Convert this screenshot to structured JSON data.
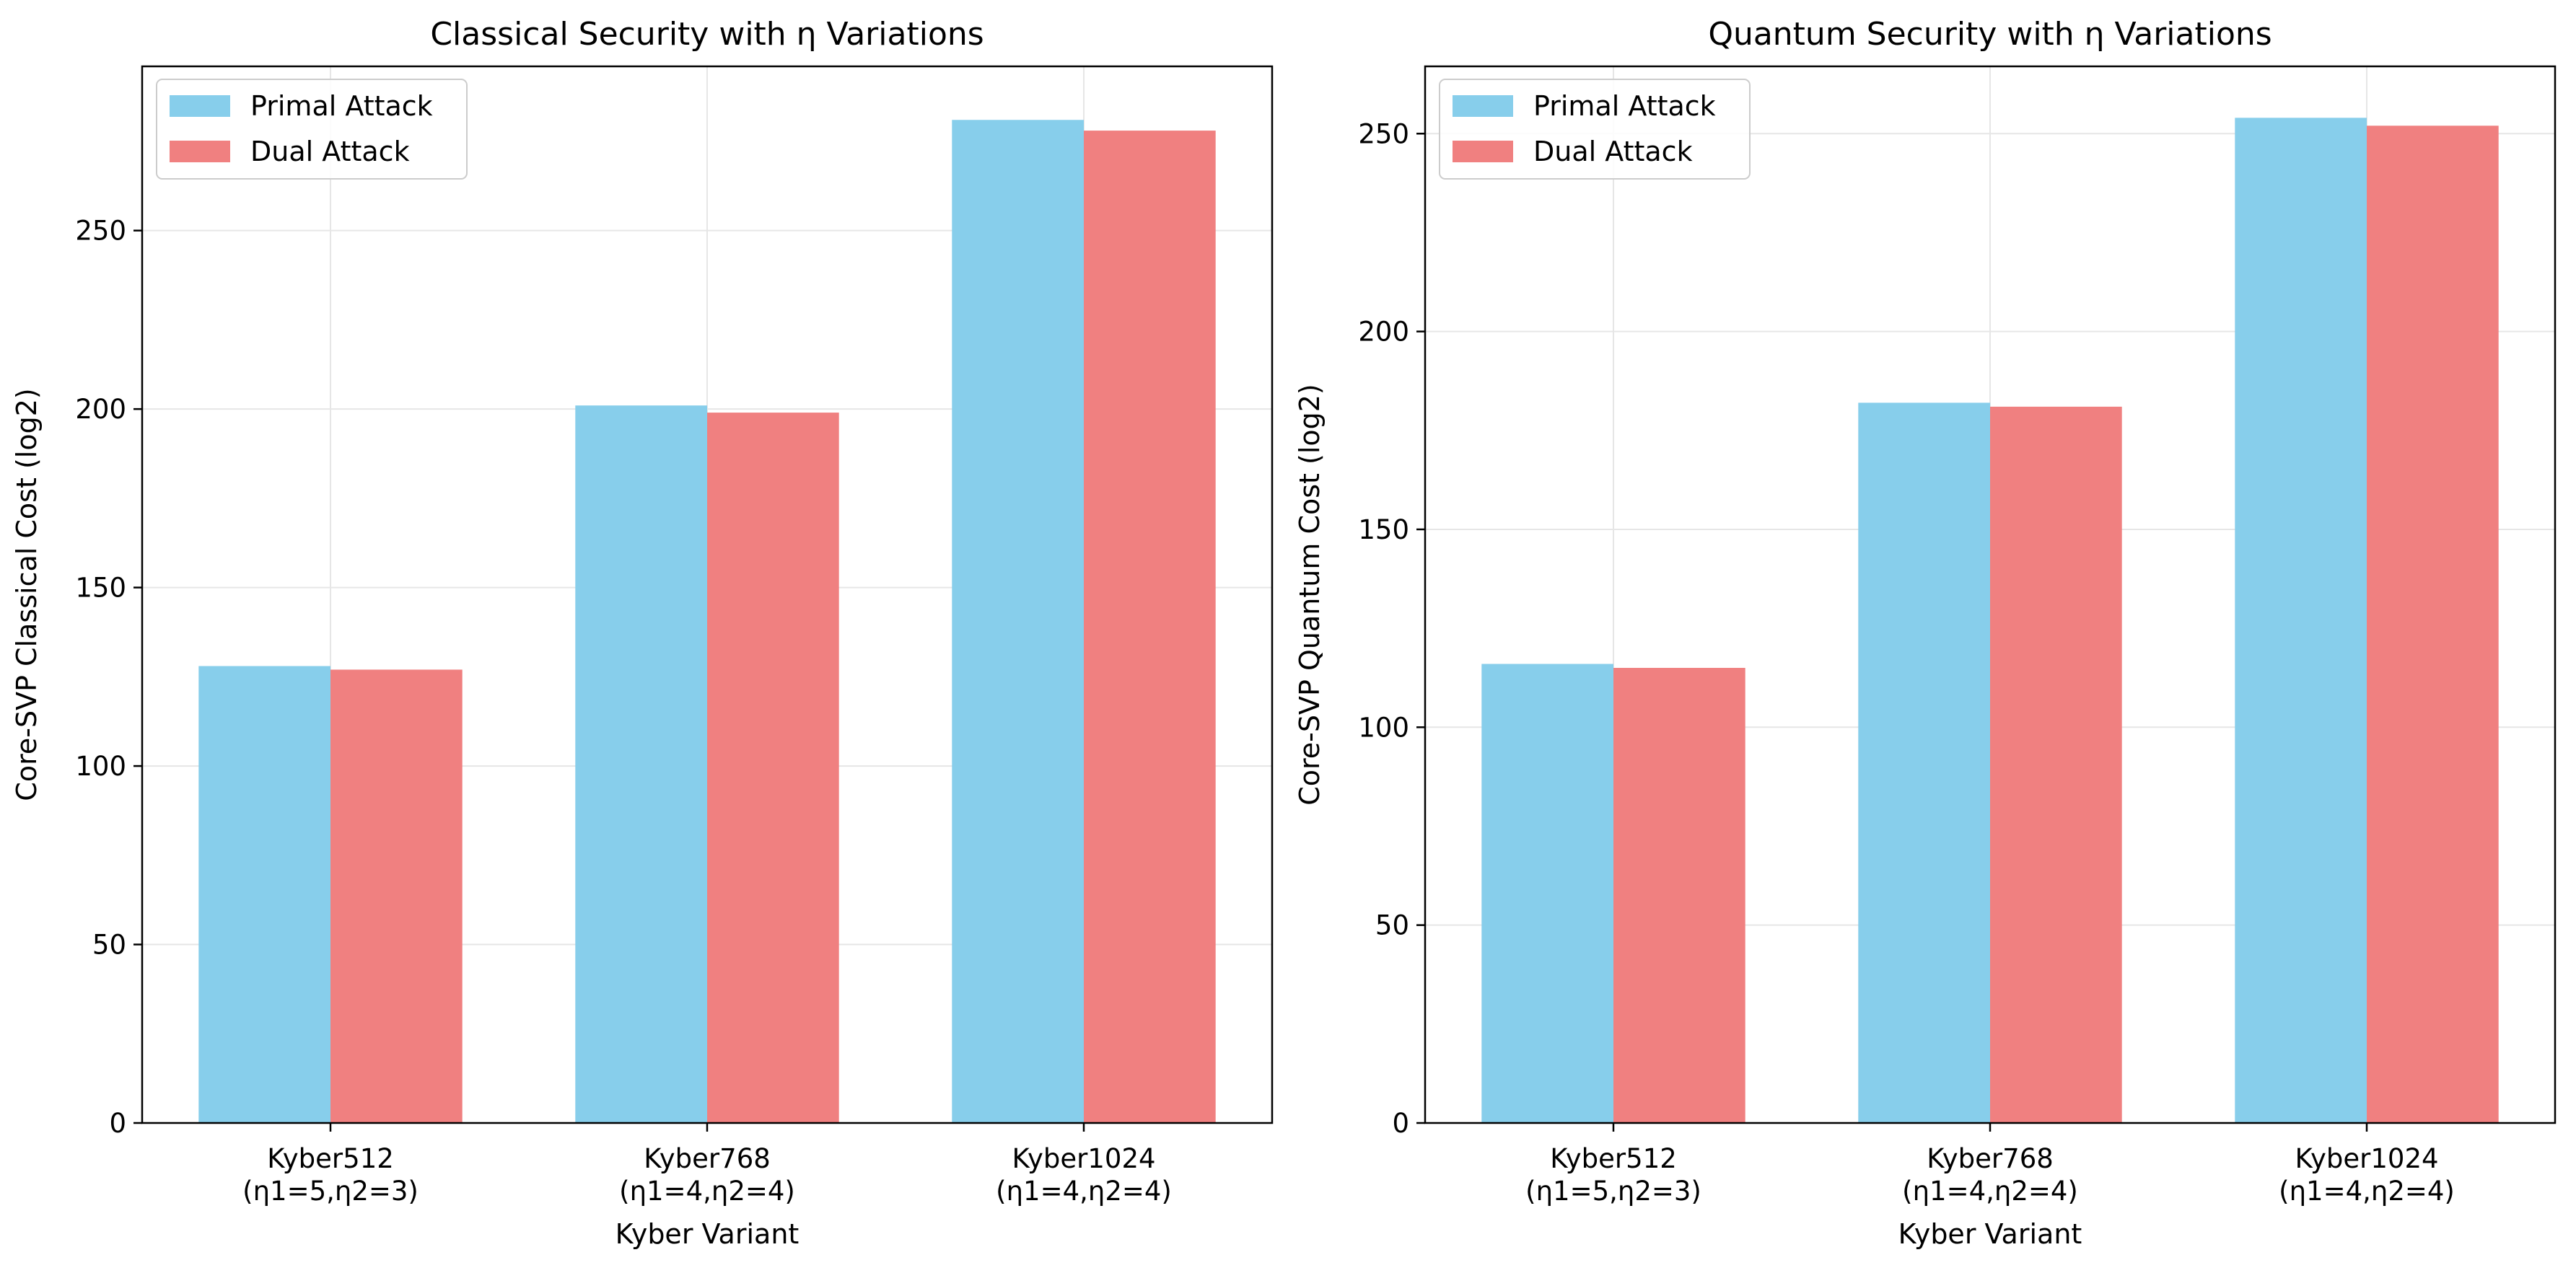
{
  "chart_data": [
    {
      "type": "bar",
      "title": "Classical Security with η Variations",
      "xlabel": "Kyber Variant",
      "ylabel": "Core-SVP Classical Cost (log2)",
      "categories": [
        "Kyber512\n(η1=5,η2=3)",
        "Kyber768\n(η1=4,η2=4)",
        "Kyber1024\n(η1=4,η2=4)"
      ],
      "series": [
        {
          "name": "Primal Attack",
          "values": [
            128,
            201,
            281
          ],
          "color": "#87CEEB"
        },
        {
          "name": "Dual Attack",
          "values": [
            127,
            199,
            278
          ],
          "color": "#F08080"
        }
      ],
      "ylim": [
        0,
        296
      ],
      "yticks": [
        0,
        50,
        100,
        150,
        200,
        250
      ],
      "grid": true,
      "legend": "top-left"
    },
    {
      "type": "bar",
      "title": "Quantum Security with η Variations",
      "xlabel": "Kyber Variant",
      "ylabel": "Core-SVP Quantum Cost (log2)",
      "categories": [
        "Kyber512\n(η1=5,η2=3)",
        "Kyber768\n(η1=4,η2=4)",
        "Kyber1024\n(η1=4,η2=4)"
      ],
      "series": [
        {
          "name": "Primal Attack",
          "values": [
            116,
            182,
            254
          ],
          "color": "#87CEEB"
        },
        {
          "name": "Dual Attack",
          "values": [
            115,
            181,
            252
          ],
          "color": "#F08080"
        }
      ],
      "ylim": [
        0,
        267
      ],
      "yticks": [
        0,
        50,
        100,
        150,
        200,
        250
      ],
      "grid": true,
      "legend": "top-left"
    }
  ]
}
